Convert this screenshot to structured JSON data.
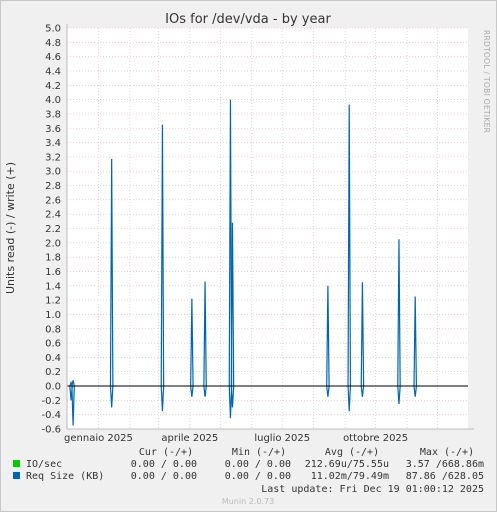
{
  "chart_data": {
    "type": "line",
    "title": "IOs for /dev/vda - by year",
    "ylabel": "Units read (-) / write (+)",
    "ylim": [
      -0.6,
      5.0
    ],
    "yticks": [
      "5.0",
      "4.8",
      "4.6",
      "4.4",
      "4.2",
      "4.0",
      "3.8",
      "3.6",
      "3.4",
      "3.2",
      "3.0",
      "2.8",
      "2.6",
      "2.4",
      "2.2",
      "2.0",
      "1.8",
      "1.6",
      "1.4",
      "1.2",
      "1.0",
      "0.8",
      "0.6",
      "0.4",
      "0.2",
      "0.0",
      "-0.2",
      "-0.4",
      "-0.6"
    ],
    "xlim": [
      "2024-12-01",
      "2025-12-31"
    ],
    "xticks": [
      {
        "date": "2025-01-01",
        "label": "gennaio 2025"
      },
      {
        "date": "2025-04-01",
        "label": "aprile 2025"
      },
      {
        "date": "2025-07-01",
        "label": "luglio 2025"
      },
      {
        "date": "2025-10-01",
        "label": "ottobre 2025"
      }
    ],
    "grid": true,
    "series": [
      {
        "name": "Req Size (KB)",
        "color": "#0066b3",
        "spikes": [
          {
            "date": "2024-12-05",
            "write": 0.05,
            "read": 0.2
          },
          {
            "date": "2024-12-07",
            "write": 0.08,
            "read": 0.55
          },
          {
            "date": "2025-01-14",
            "write": 3.17,
            "read": 0.3
          },
          {
            "date": "2025-03-05",
            "write": 3.65,
            "read": 0.35
          },
          {
            "date": "2025-04-03",
            "write": 1.22,
            "read": 0.15
          },
          {
            "date": "2025-04-16",
            "write": 1.46,
            "read": 0.15
          },
          {
            "date": "2025-05-11",
            "write": 4.0,
            "read": 0.45
          },
          {
            "date": "2025-05-13",
            "write": 2.28,
            "read": 0.3
          },
          {
            "date": "2025-08-15",
            "write": 1.4,
            "read": 0.15
          },
          {
            "date": "2025-09-05",
            "write": 3.93,
            "read": 0.35
          },
          {
            "date": "2025-09-18",
            "write": 1.45,
            "read": 0.15
          },
          {
            "date": "2025-10-24",
            "write": 2.05,
            "read": 0.25
          },
          {
            "date": "2025-11-09",
            "write": 1.25,
            "read": 0.15
          }
        ]
      }
    ]
  },
  "side_text": "RRDTOOL / TOBI OETIKER",
  "legend": {
    "headers": [
      "Cur (-/+)",
      "Min (-/+)",
      "Avg (-/+)",
      "Max (-/+)"
    ],
    "rows": [
      {
        "name": "IO/sec",
        "color": "#00cc00",
        "cur": "0.00 / 0.00",
        "min": "0.00 / 0.00",
        "avg": "212.69u/75.55u",
        "max": "3.57 /668.86m"
      },
      {
        "name": "Req Size (KB)",
        "color": "#0066b3",
        "cur": "0.00 / 0.00",
        "min": "0.00 / 0.00",
        "avg": "11.02m/79.49m",
        "max": "87.86 /628.05"
      }
    ],
    "last_update": "Last update: Fri Dec 19 01:00:12 2025"
  },
  "footer": "Munin 2.0.73"
}
